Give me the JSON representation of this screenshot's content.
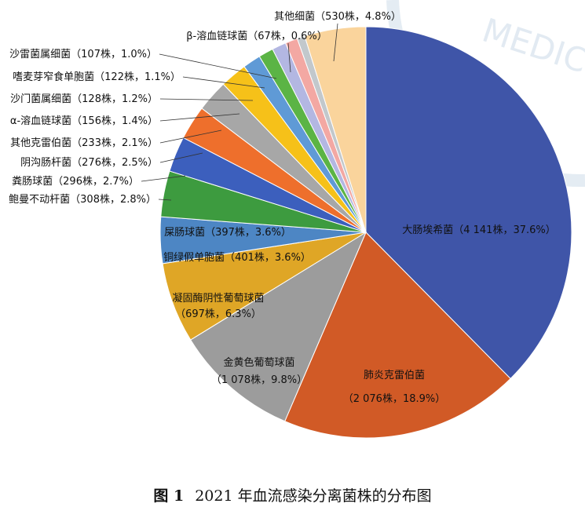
{
  "chart_data": {
    "type": "pie",
    "title": "",
    "slices": [
      {
        "label": "大肠埃希菌",
        "count": 4141,
        "count_text": "4 141株",
        "percent": 37.6,
        "color": "#3f55a8"
      },
      {
        "label": "肺炎克雷伯菌",
        "count": 2076,
        "count_text": "2 076株",
        "percent": 18.9,
        "color": "#d15a26"
      },
      {
        "label": "金黄色葡萄球菌",
        "count": 1078,
        "count_text": "1 078株",
        "percent": 9.8,
        "color": "#9c9c9c"
      },
      {
        "label": "凝固酶阴性葡萄球菌",
        "count": 697,
        "count_text": "697株",
        "percent": 6.3,
        "color": "#dfa626"
      },
      {
        "label": "铜绿假单胞菌",
        "count": 401,
        "count_text": "401株",
        "percent": 3.6,
        "color": "#4d86c4"
      },
      {
        "label": "屎肠球菌",
        "count": 397,
        "count_text": "397株",
        "percent": 3.6,
        "color": "#3d9b3f"
      },
      {
        "label": "鲍曼不动杆菌",
        "count": 308,
        "count_text": "308株",
        "percent": 2.8,
        "color": "#3c5fbd"
      },
      {
        "label": "粪肠球菌",
        "count": 296,
        "count_text": "296株",
        "percent": 2.7,
        "color": "#ee6f2c"
      },
      {
        "label": "阴沟肠杆菌",
        "count": 276,
        "count_text": "276株",
        "percent": 2.5,
        "color": "#a7a7a7"
      },
      {
        "label": "其他克雷伯菌",
        "count": 233,
        "count_text": "233株",
        "percent": 2.1,
        "color": "#f6c119"
      },
      {
        "label": "α-溶血链球菌",
        "count": 156,
        "count_text": "156株",
        "percent": 1.4,
        "color": "#5f9ad6"
      },
      {
        "label": "沙门菌属细菌",
        "count": 128,
        "count_text": "128株",
        "percent": 1.2,
        "color": "#5bb445"
      },
      {
        "label": "嗜麦芽窄食单胞菌",
        "count": 122,
        "count_text": "122株",
        "percent": 1.1,
        "color": "#b3b7e2"
      },
      {
        "label": "沙雷菌属细菌",
        "count": 107,
        "count_text": "107株",
        "percent": 1.0,
        "color": "#f3a8a3"
      },
      {
        "label": "β-溶血链球菌",
        "count": 67,
        "count_text": "67株",
        "percent": 0.6,
        "color": "#c2c8cc"
      },
      {
        "label": "其他细菌",
        "count": 530,
        "count_text": "530株",
        "percent": 4.8,
        "color": "#fad49c"
      }
    ]
  },
  "caption": {
    "number": "图 1",
    "text": "2021 年血流感染分离菌株的分布图"
  },
  "watermark": {
    "text": "MEDIC"
  }
}
